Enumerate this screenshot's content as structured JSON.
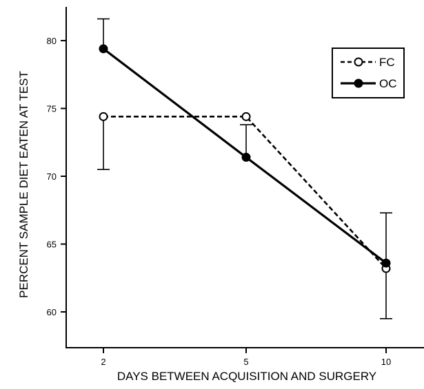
{
  "chart_data": {
    "type": "line",
    "title": "",
    "xlabel": "DAYS BETWEEN ACQUISITION AND SURGERY",
    "ylabel": "PERCENT SAMPLE DIET EATEN AT TEST",
    "categories": [
      "2",
      "5",
      "10"
    ],
    "ylim": [
      57,
      82
    ],
    "yticks": [
      60,
      65,
      70,
      75,
      80
    ],
    "grid": false,
    "legend_position": "top-right",
    "series": [
      {
        "name": "FC",
        "marker": "open-circle",
        "line_style": "dashed",
        "values": [
          74.4,
          74.4,
          63.2
        ],
        "error_bars": [
          {
            "lower": 70.5,
            "upper": 74.4
          },
          {
            "lower": 74.4,
            "upper": 74.4
          },
          {
            "lower": 59.5,
            "upper": 63.2
          }
        ]
      },
      {
        "name": "OC",
        "marker": "filled-circle",
        "line_style": "solid",
        "values": [
          79.4,
          71.4,
          63.6
        ],
        "error_bars": [
          {
            "lower": 79.4,
            "upper": 81.6
          },
          {
            "lower": 71.4,
            "upper": 73.8
          },
          {
            "lower": 63.6,
            "upper": 67.3
          }
        ]
      }
    ]
  }
}
